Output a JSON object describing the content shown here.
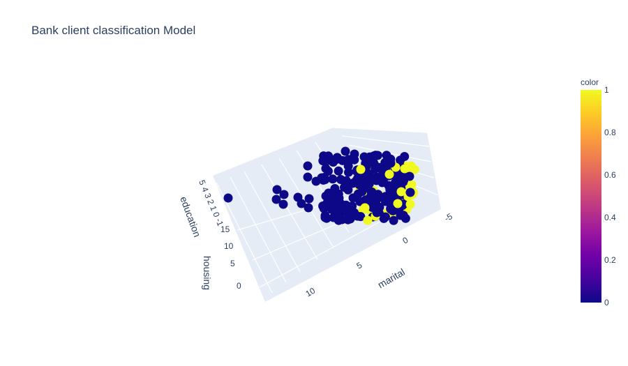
{
  "title": "Bank client classification Model",
  "chart_data": {
    "type": "scatter3d",
    "title": "Bank client classification Model",
    "axes": {
      "x": {
        "title": "marital",
        "ticks": [
          "-5",
          "0",
          "5",
          "10"
        ]
      },
      "y": {
        "title": "education",
        "ticks": [
          "5",
          "4",
          "3",
          "2",
          "1",
          "0",
          "-1"
        ]
      },
      "z": {
        "title": "housing",
        "ticks": [
          "0",
          "5",
          "10",
          "15"
        ]
      }
    },
    "colorbar": {
      "title": "color",
      "ticks": [
        "0",
        "0.2",
        "0.4",
        "0.6",
        "0.8",
        "1"
      ],
      "range": [
        0,
        1
      ],
      "colorscale": [
        "#0d0887",
        "#46039f",
        "#7201a8",
        "#9c179e",
        "#bd3786",
        "#d8576b",
        "#ed7953",
        "#fb9f3a",
        "#fdca26",
        "#f0f921"
      ]
    },
    "series": [
      {
        "color_value": 0,
        "color": "#0d0887"
      },
      {
        "color_value": 1,
        "color": "#f0f921"
      }
    ]
  }
}
